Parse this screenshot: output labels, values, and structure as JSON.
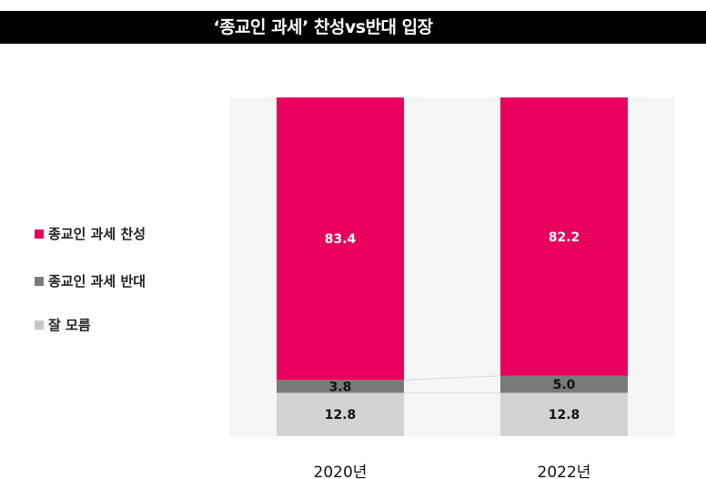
{
  "title": "‘종교인 과세’ 찬성vs반대 입장",
  "colors": {
    "favor": "#e8005c",
    "oppose": "#7a7a7a",
    "unknown": "#d3d3d3",
    "plot_bg": "#f5f5f5",
    "title_bg": "#000000"
  },
  "legend": [
    {
      "label": "종교인 과세 찬성",
      "color": "#e8005c"
    },
    {
      "label": "종교인 과세 반대",
      "color": "#7a7a7a"
    },
    {
      "label": "잘 모름",
      "color": "#c8c8c8"
    }
  ],
  "chart_data": {
    "type": "bar",
    "stacked": true,
    "categories": [
      "2020년",
      "2022년"
    ],
    "series": [
      {
        "name": "종교인 과세 찬성",
        "values": [
          83.4,
          82.2
        ]
      },
      {
        "name": "종교인 과세 반대",
        "values": [
          3.8,
          5.0
        ]
      },
      {
        "name": "잘 모름",
        "values": [
          12.8,
          12.8
        ]
      }
    ],
    "data_labels": [
      [
        "83.4",
        "82.2"
      ],
      [
        "3.8",
        "5.0"
      ],
      [
        "12.8",
        "12.8"
      ]
    ],
    "legend_position": "left"
  }
}
